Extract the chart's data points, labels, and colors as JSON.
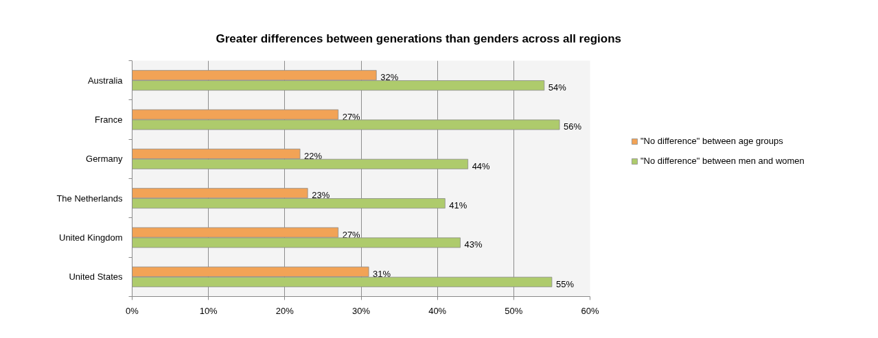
{
  "chart_data": {
    "type": "bar",
    "orientation": "horizontal",
    "title": "Greater differences between generations than genders across all regions",
    "categories": [
      "Australia",
      "France",
      "Germany",
      "The Netherlands",
      "United Kingdom",
      "United States"
    ],
    "series": [
      {
        "name": "\"No difference\" between age groups",
        "color": "#f2a356",
        "values": [
          32,
          27,
          22,
          23,
          27,
          31
        ],
        "value_labels": [
          "32%",
          "27%",
          "22%",
          "23%",
          "27%",
          "31%"
        ]
      },
      {
        "name": "\"No difference\" between men and women",
        "color": "#aecb6c",
        "values": [
          54,
          56,
          44,
          41,
          43,
          55
        ],
        "value_labels": [
          "54%",
          "56%",
          "44%",
          "41%",
          "43%",
          "55%"
        ]
      }
    ],
    "xlim": [
      0,
      60
    ],
    "xticks": [
      {
        "value": 0,
        "label": "0%"
      },
      {
        "value": 10,
        "label": "10%"
      },
      {
        "value": 20,
        "label": "20%"
      },
      {
        "value": 30,
        "label": "30%"
      },
      {
        "value": 40,
        "label": "40%"
      },
      {
        "value": 50,
        "label": "50%"
      },
      {
        "value": 60,
        "label": "60%"
      }
    ],
    "grid": "x",
    "legend": "right"
  }
}
